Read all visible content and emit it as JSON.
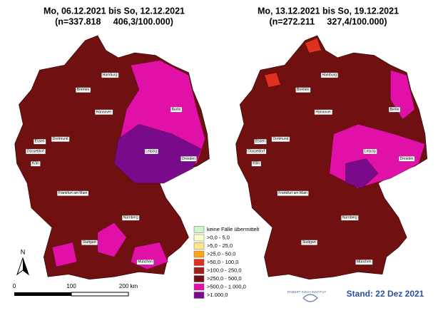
{
  "maps": [
    {
      "title": "Mo, 06.12.2021 bis So, 12.12.2021",
      "subtitle": "(n=337.818     406,3/100.000)",
      "cities": [
        "Hamburg",
        "Bremen",
        "Hannover",
        "Berlin",
        "Essen",
        "Dortmund",
        "Düsseldorf",
        "Köln",
        "Leipzig",
        "Dresden",
        "Frankfurt am Main",
        "Nürnberg",
        "Stuttgart",
        "München"
      ]
    },
    {
      "title": "Mo, 13.12.2021 bis So, 19.12.2021",
      "subtitle": "(n=272.211     327,4/100.000)",
      "cities": [
        "Hamburg",
        "Bremen",
        "Hannover",
        "Berlin",
        "Essen",
        "Dortmund",
        "Düsseldorf",
        "Köln",
        "Leipzig",
        "Dresden",
        "Frankfurt am Main",
        "Nürnberg",
        "Stuttgart",
        "München"
      ]
    }
  ],
  "legend": [
    {
      "label": "keine Fälle übermittelt",
      "color": "#ccf5cc"
    },
    {
      "label": ">0,0 - 5,0",
      "color": "#ffffcc"
    },
    {
      "label": ">5,0 - 25,0",
      "color": "#ffe680"
    },
    {
      "label": ">25,0 - 50,0",
      "color": "#ffa31a"
    },
    {
      "label": ">50,0 - 100,0",
      "color": "#e0301e"
    },
    {
      "label": ">100,0 - 250,0",
      "color": "#a51e1e"
    },
    {
      "label": ">250,0 - 500,0",
      "color": "#701010"
    },
    {
      "label": ">500,0 - 1.000,0",
      "color": "#e010a8"
    },
    {
      "label": ">1.000,0",
      "color": "#7a0a8c"
    }
  ],
  "north": "N",
  "scale": [
    "0",
    "100",
    "200 km"
  ],
  "logo": "ROBERT KOCH INSTITUT",
  "stand": "Stand: 22 Dez 2021"
}
